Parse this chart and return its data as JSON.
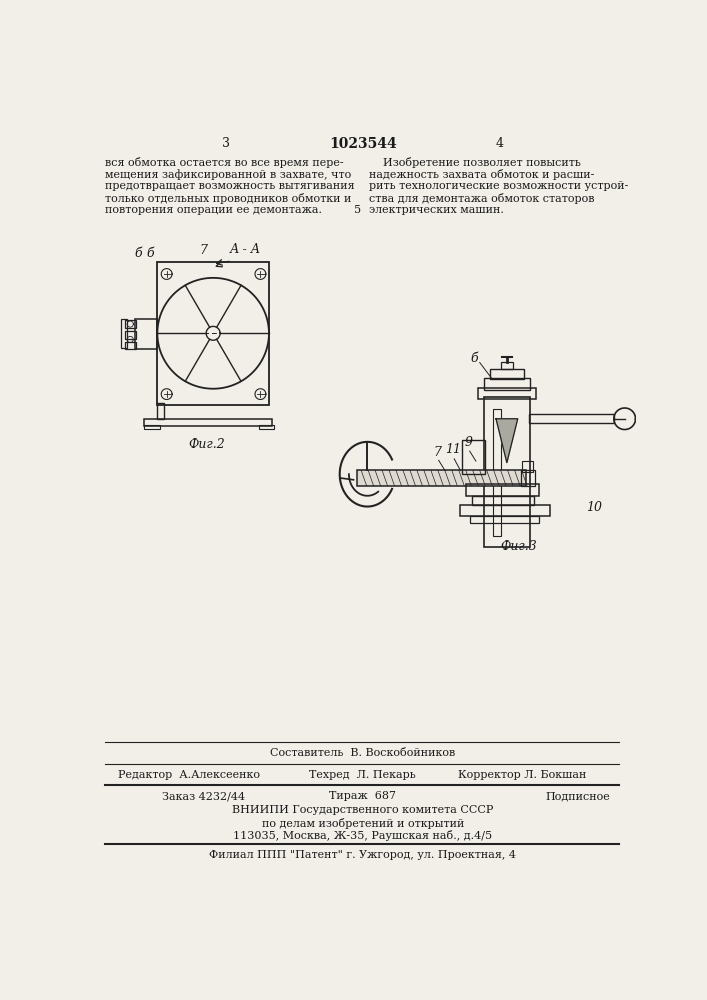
{
  "bg_color": "#f2efe8",
  "page_number_left": "3",
  "patent_number": "1023544",
  "page_number_right": "4",
  "left_column_text": [
    "вся обмотка остается во все время пере-",
    "мещения зафиксированной в захвате, что",
    "предотвращает возможность вытягивания",
    "только отдельных проводников обмотки и",
    "повторения операции ее демонтажа."
  ],
  "right_column_text": [
    "    Изобретение позволяет повысить",
    "надежность захвата обмоток и расши-",
    "рить технологические возможности устрой-",
    "ства для демонтажа обмоток статоров",
    "электрических машин."
  ],
  "right_col_number": "5",
  "fig2_label": "Фиг.2",
  "fig3_label": "Фиг.3",
  "aa_label": "А - А",
  "footer_line1": "Составитель  В. Воскобойников",
  "footer_line2_left": "Редактор  А.Алексеенко",
  "footer_line2_mid": "Техред  Л. Пекарь",
  "footer_line2_right": "Корректор Л. Бокшан",
  "footer_line3_left": "Заказ 4232/44",
  "footer_line3_mid": "Тираж  687",
  "footer_line3_right": "Подписное",
  "footer_line4": "ВНИИПИ Государственного комитета СССР",
  "footer_line5": "по делам изобретений и открытий",
  "footer_line6": "113035, Москва, Ж-35, Раушская наб., д.4/5",
  "footer_line7": "Филиал ППП \"Патент\" г. Ужгород, ул. Проектная, 4",
  "text_color": "#1a1a1a",
  "line_color": "#222222"
}
